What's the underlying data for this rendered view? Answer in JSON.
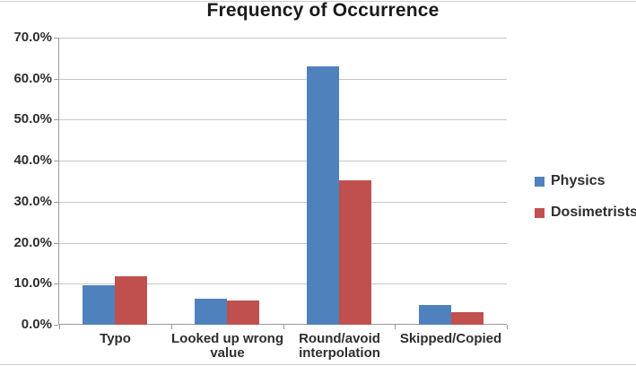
{
  "chart_data": {
    "type": "bar",
    "title": "Frequency of Occurrence",
    "categories": [
      "Typo",
      "Looked up wrong value",
      "Round/avoid interpolation",
      "Skipped/Copied"
    ],
    "series": [
      {
        "name": "Physics",
        "color": "#4F81BD",
        "values": [
          9.6,
          6.4,
          62.9,
          4.8
        ]
      },
      {
        "name": "Dosimetrists",
        "color": "#C0504D",
        "values": [
          11.9,
          5.8,
          35.3,
          3.0
        ]
      }
    ],
    "xlabel": "",
    "ylabel": "",
    "ylim": [
      0,
      70
    ],
    "y_tick_step": 10,
    "y_tick_labels": [
      "0.0%",
      "10.0%",
      "20.0%",
      "30.0%",
      "40.0%",
      "50.0%",
      "60.0%",
      "70.0%"
    ],
    "grid": true,
    "legend_position": "right"
  },
  "colors": {
    "gridline": "#c6c6c6",
    "axis": "#9a9a9a",
    "label_text": "#2e2e2e",
    "title_text": "#1a1a1a",
    "background": "#ffffff",
    "figure_rule": "#cfcfcf"
  }
}
